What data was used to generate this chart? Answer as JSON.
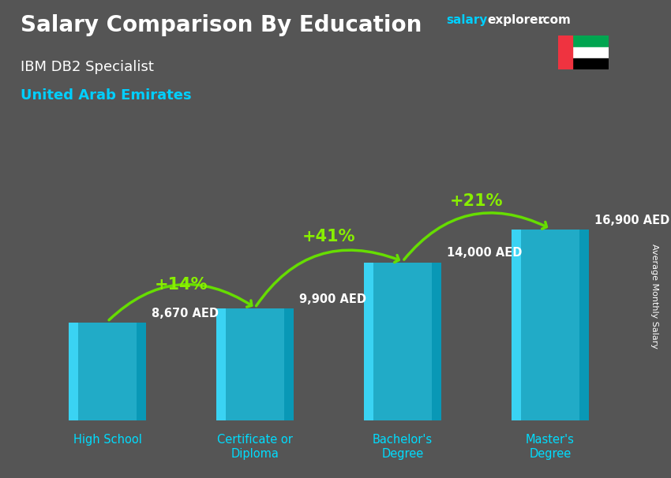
{
  "title": "Salary Comparison By Education",
  "subtitle1": "IBM DB2 Specialist",
  "subtitle2": "United Arab Emirates",
  "ylabel": "Average Monthly Salary",
  "categories": [
    "High School",
    "Certificate or\nDiploma",
    "Bachelor's\nDegree",
    "Master's\nDegree"
  ],
  "values": [
    8670,
    9900,
    14000,
    16900
  ],
  "labels": [
    "8,670 AED",
    "9,900 AED",
    "14,000 AED",
    "16,900 AED"
  ],
  "pct_labels": [
    "+14%",
    "+41%",
    "+21%"
  ],
  "bar_color_main": "#1ab8d8",
  "bar_color_light": "#3dd8f8",
  "bar_color_dark": "#0090b0",
  "title_color": "#ffffff",
  "subtitle1_color": "#ffffff",
  "subtitle2_color": "#00cfff",
  "label_color": "#ffffff",
  "pct_color": "#88ee00",
  "arrow_color": "#66dd00",
  "xlabel_color": "#00ddff",
  "watermark_salary_color": "#00cfff",
  "watermark_explorer_color": "#ffffff",
  "bg_color": "#555555",
  "ylim": [
    0,
    22000
  ],
  "figsize": [
    8.5,
    6.06
  ],
  "dpi": 100,
  "bar_width": 0.52
}
